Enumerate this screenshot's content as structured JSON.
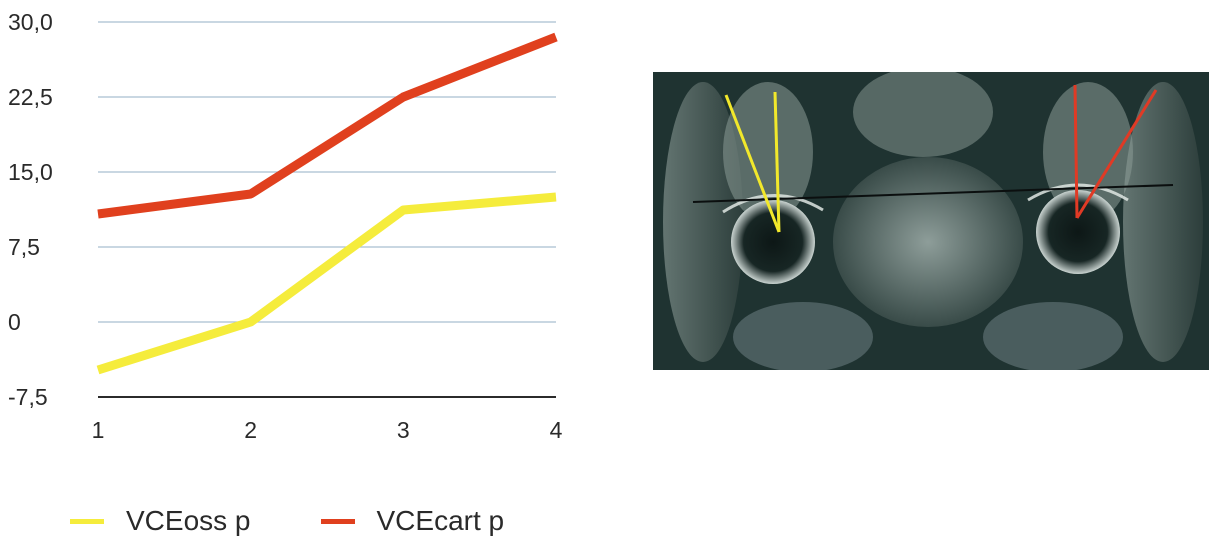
{
  "chart_data": {
    "type": "line",
    "x": [
      1,
      2,
      3,
      4
    ],
    "xticks": [
      "1",
      "2",
      "3",
      "4"
    ],
    "yticks": [
      "30,0",
      "22,5",
      "15,0",
      "7,5",
      "0",
      "-7,5"
    ],
    "ylim": [
      -7.5,
      30
    ],
    "grid": true,
    "legend_position": "bottom",
    "series": [
      {
        "name": "VCEoss p",
        "color": "#f5ec3c",
        "values": [
          -4.8,
          0.0,
          11.2,
          12.5
        ]
      },
      {
        "name": "VCEcart p",
        "color": "#e0401e",
        "values": [
          10.8,
          12.8,
          22.5,
          28.5
        ]
      }
    ]
  },
  "colors": {
    "grid": "#a9bfd1",
    "axis": "#2b2b2b",
    "mri_background": "#1f3331",
    "yellow_marker": "#f2e82b",
    "red_marker": "#e03a25"
  },
  "image": {
    "label": "mri-pelvis-photo"
  }
}
